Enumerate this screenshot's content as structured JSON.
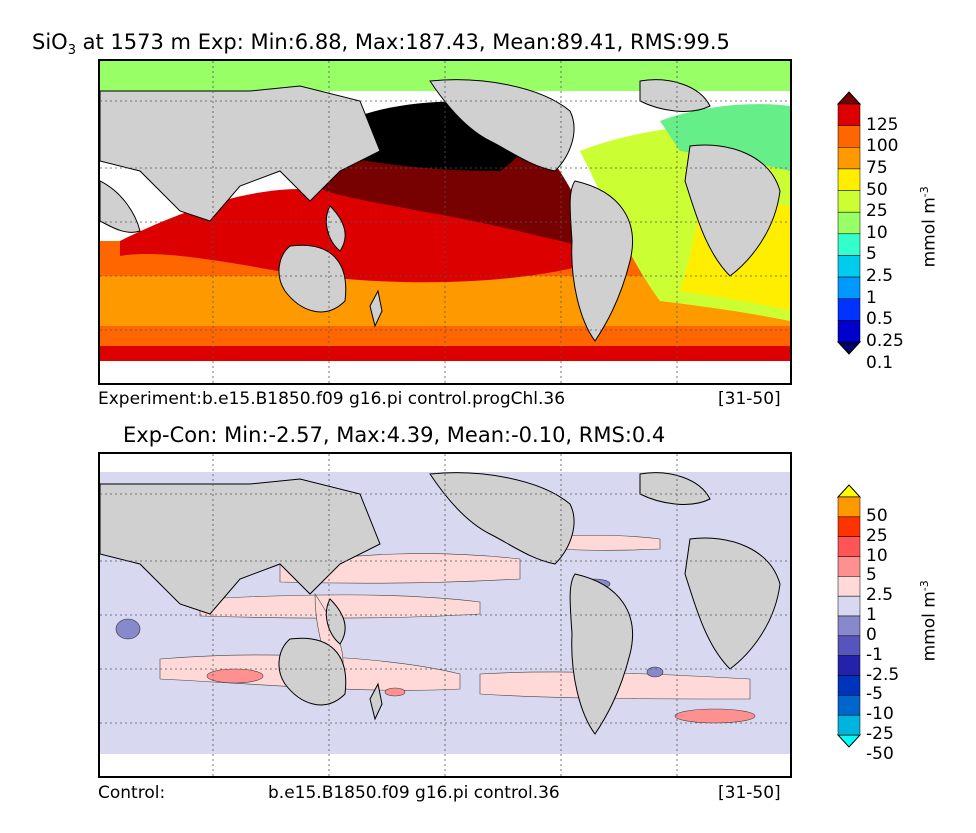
{
  "panel_top": {
    "title_prefix": "SiO",
    "title_sub": "3",
    "title_rest": " at 1573 m Exp: Min:6.88, Max:187.43, Mean:89.41, RMS:99.5",
    "caption_left": "Experiment:b.e15.B1850.f09 g16.pi control.progChl.36",
    "caption_right": "[31-50]",
    "colorbar": {
      "labels": [
        "125",
        "100",
        "75",
        "50",
        "25",
        "10",
        "5",
        "2.5",
        "1",
        "0.5",
        "0.25",
        "0.1"
      ],
      "colors": [
        "#000066",
        "#0000cc",
        "#0033ff",
        "#0099ff",
        "#00ccee",
        "#33ffcc",
        "#99ff66",
        "#ccff33",
        "#ffee00",
        "#ff9900",
        "#ff6600",
        "#dd0000",
        "#770000"
      ],
      "unit_main": "mmol m",
      "unit_sup": "-3"
    },
    "legend_colors": {
      "land": "#d0d0d0",
      "ocean_deep": "#000000"
    }
  },
  "panel_bottom": {
    "title": "Exp-Con: Min:-2.57, Max:4.39, Mean:-0.10, RMS:0.4",
    "caption_left": "Control:",
    "caption_mid": "b.e15.B1850.f09 g16.pi control.36",
    "caption_right": "[31-50]",
    "colorbar": {
      "labels": [
        "50",
        "25",
        "10",
        "5",
        "2.5",
        "1",
        "0",
        "-1",
        "-2.5",
        "-5",
        "-10",
        "-25",
        "-50"
      ],
      "colors": [
        "#00ffff",
        "#00b4dd",
        "#0066cc",
        "#0033bb",
        "#2222aa",
        "#5555bb",
        "#8888cc",
        "#d8d8f0",
        "#ffd8d8",
        "#ff9090",
        "#ff5555",
        "#ff3300",
        "#ff9900",
        "#ffff00"
      ],
      "unit_main": "mmol m",
      "unit_sup": "-3"
    }
  }
}
